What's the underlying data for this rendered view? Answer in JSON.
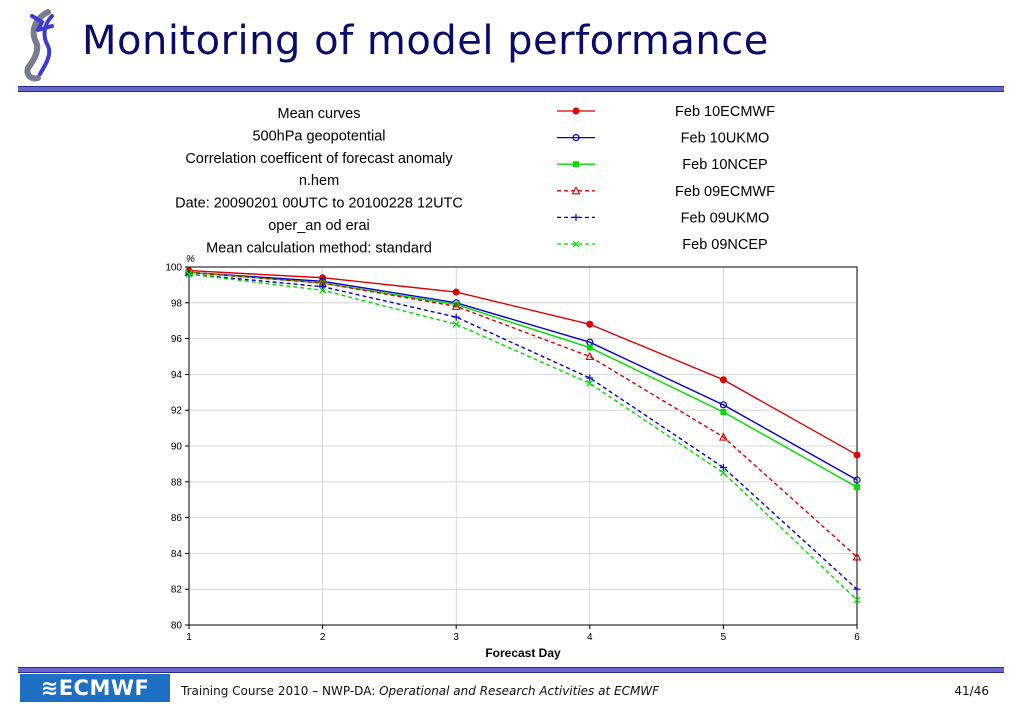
{
  "slide": {
    "title": "Monitoring of model performance"
  },
  "footer": {
    "logo_text": "≋ECMWF",
    "course_text": "Training Course 2010 – NWP-DA: ",
    "course_italic": "Operational and Research Activities at ECMWF",
    "page": "41/46"
  },
  "chart_data": {
    "type": "line",
    "title_lines": [
      "Mean curves",
      "500hPa geopotential",
      "Correlation coefficent of forecast anomaly",
      "n.hem",
      "Date: 20090201 00UTC to 20100228 12UTC",
      "oper_an od erai",
      "Mean calculation method: standard"
    ],
    "xlabel": "Forecast Day",
    "ylabel": "%",
    "x": [
      1,
      2,
      3,
      4,
      5,
      6
    ],
    "xlim": [
      1,
      6
    ],
    "ylim": [
      80,
      100
    ],
    "yticks": [
      80,
      82,
      84,
      86,
      88,
      90,
      92,
      94,
      96,
      98,
      100
    ],
    "grid": true,
    "legend_position": "top-right",
    "series": [
      {
        "name": "Feb 10ECMWF",
        "color": "#dd0000",
        "dashed": false,
        "marker": "dot",
        "values": [
          99.8,
          99.4,
          98.6,
          96.8,
          93.7,
          89.5
        ]
      },
      {
        "name": "Feb 10UKMO",
        "color": "#0000cc",
        "dashed": false,
        "marker": "circle",
        "values": [
          99.7,
          99.2,
          98.0,
          95.8,
          92.3,
          88.1
        ]
      },
      {
        "name": "Feb 10NCEP",
        "color": "#00dd00",
        "dashed": false,
        "marker": "square",
        "values": [
          99.7,
          99.1,
          97.9,
          95.5,
          91.9,
          87.7
        ]
      },
      {
        "name": "Feb 09ECMWF",
        "color": "#dd0000",
        "dashed": true,
        "marker": "triangle",
        "values": [
          99.7,
          99.1,
          97.8,
          95.0,
          90.5,
          83.8
        ]
      },
      {
        "name": "Feb 09UKMO",
        "color": "#0000cc",
        "dashed": true,
        "marker": "plus",
        "values": [
          99.6,
          98.9,
          97.2,
          93.8,
          88.8,
          82.0
        ]
      },
      {
        "name": "Feb 09NCEP",
        "color": "#00dd00",
        "dashed": true,
        "marker": "cross",
        "values": [
          99.6,
          98.7,
          96.8,
          93.5,
          88.5,
          81.4
        ]
      }
    ]
  }
}
